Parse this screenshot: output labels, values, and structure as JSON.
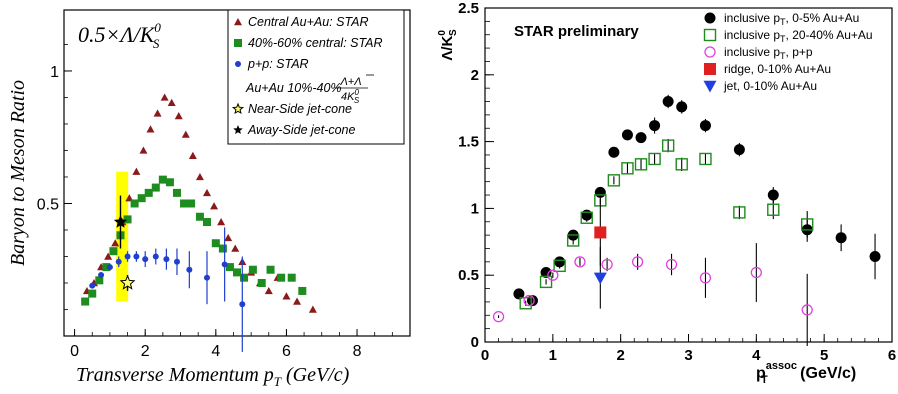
{
  "chart_data": [
    {
      "type": "scatter",
      "title": "0.5×Λ/K",
      "title_sup": "0",
      "title_sub": "S",
      "xlabel": "Transverse Momentum p",
      "xlabel_sub": "T",
      "xlabel_unit": " (GeV/c)",
      "ylabel": "Baryon to Meson Ratio",
      "xlim": [
        -0.3,
        9.5
      ],
      "ylim": [
        0,
        1.23
      ],
      "x_ticks": [
        0,
        2,
        4,
        6,
        8
      ],
      "x_tick_labels": [
        "0",
        "2",
        "4",
        "6",
        "8"
      ],
      "y_ticks": [
        0.5,
        1
      ],
      "y_tick_labels": [
        "0.5",
        "1"
      ],
      "band": {
        "x": 1.32,
        "y0": 0.13,
        "y1": 0.62,
        "color": "#ffff00"
      },
      "legend_position": "top-right",
      "series": [
        {
          "name": "Central Au+Au: STAR",
          "marker": "triangle",
          "color": "#8b1a1a",
          "points": [
            [
              0.35,
              0.17
            ],
            [
              0.55,
              0.2
            ],
            [
              0.75,
              0.26
            ],
            [
              0.95,
              0.3
            ],
            [
              1.15,
              0.35
            ],
            [
              1.35,
              0.43
            ],
            [
              1.55,
              0.52
            ],
            [
              1.75,
              0.62
            ],
            [
              1.95,
              0.7
            ],
            [
              2.15,
              0.78
            ],
            [
              2.35,
              0.84
            ],
            [
              2.55,
              0.9
            ],
            [
              2.75,
              0.88
            ],
            [
              2.95,
              0.83
            ],
            [
              3.15,
              0.76
            ],
            [
              3.35,
              0.68
            ],
            [
              3.55,
              0.6
            ],
            [
              3.75,
              0.54
            ],
            [
              3.95,
              0.49
            ],
            [
              4.15,
              0.43
            ],
            [
              4.35,
              0.37
            ],
            [
              4.55,
              0.33
            ],
            [
              4.75,
              0.28
            ],
            [
              5.0,
              0.24
            ],
            [
              5.25,
              0.2
            ],
            [
              5.5,
              0.17
            ],
            [
              5.75,
              0.22
            ],
            [
              6.0,
              0.15
            ],
            [
              6.3,
              0.13
            ],
            [
              6.75,
              0.1
            ]
          ]
        },
        {
          "name": "40%-60% central: STAR",
          "marker": "square",
          "color": "#1e8c1e",
          "points": [
            [
              0.3,
              0.13
            ],
            [
              0.5,
              0.16
            ],
            [
              0.7,
              0.21
            ],
            [
              0.9,
              0.26
            ],
            [
              1.1,
              0.32
            ],
            [
              1.3,
              0.38
            ],
            [
              1.5,
              0.44
            ],
            [
              1.7,
              0.5
            ],
            [
              1.9,
              0.52
            ],
            [
              2.1,
              0.54
            ],
            [
              2.3,
              0.56
            ],
            [
              2.5,
              0.59
            ],
            [
              2.7,
              0.58
            ],
            [
              2.9,
              0.54
            ],
            [
              3.1,
              0.5
            ],
            [
              3.3,
              0.5
            ],
            [
              3.55,
              0.45
            ],
            [
              3.75,
              0.43
            ],
            [
              4.0,
              0.35
            ],
            [
              4.2,
              0.33
            ],
            [
              4.4,
              0.26
            ],
            [
              4.6,
              0.24
            ],
            [
              4.8,
              0.22
            ],
            [
              5.05,
              0.25
            ],
            [
              5.3,
              0.2
            ],
            [
              5.55,
              0.25
            ],
            [
              5.85,
              0.22
            ],
            [
              6.15,
              0.22
            ],
            [
              6.45,
              0.17
            ]
          ]
        },
        {
          "name": "p+p: STAR",
          "marker": "circle",
          "color": "#1f3fd0",
          "points": [
            [
              0.5,
              0.19
            ],
            [
              0.75,
              0.23
            ],
            [
              1.0,
              0.26
            ],
            [
              1.25,
              0.28
            ],
            [
              1.5,
              0.3
            ],
            [
              1.75,
              0.3
            ],
            [
              2.0,
              0.29
            ],
            [
              2.3,
              0.3
            ],
            [
              2.6,
              0.29
            ],
            [
              2.9,
              0.28
            ],
            [
              3.25,
              0.25
            ],
            [
              3.75,
              0.22
            ],
            [
              4.25,
              0.27
            ],
            [
              4.75,
              0.12
            ]
          ],
          "errors": [
            0.01,
            0.01,
            0.01,
            0.02,
            0.02,
            0.02,
            0.03,
            0.03,
            0.04,
            0.05,
            0.07,
            0.1,
            0.14,
            0.18
          ]
        }
      ],
      "special_series": [
        {
          "name": "Au+Au 10%-40%",
          "ratio_label_top": "Λ+Λ",
          "ratio_label_bottom": "4K",
          "ratio_label_bottom_sup": "0",
          "ratio_label_bottom_sub": "S"
        },
        {
          "name": "Near-Side jet-cone",
          "marker": "open-star",
          "color": "#000000",
          "points": [
            [
              1.5,
              0.2
            ]
          ],
          "errors": [
            0.03
          ]
        },
        {
          "name": "Away-Side jet-cone",
          "marker": "star",
          "color": "#000000",
          "points": [
            [
              1.3,
              0.43
            ]
          ],
          "errors": [
            0.1
          ]
        }
      ]
    },
    {
      "type": "scatter",
      "title": "STAR preliminary",
      "ylabel": "Λ/K",
      "ylabel_sup": "0",
      "ylabel_sub": "S",
      "xlabel": "p",
      "xlabel_sub": "T",
      "xlabel_sup": "assoc",
      "xlabel_unit": " (GeV/c)",
      "xlim": [
        0,
        6
      ],
      "ylim": [
        0,
        2.5
      ],
      "x_ticks": [
        0,
        1,
        2,
        3,
        4,
        5,
        6
      ],
      "x_tick_labels": [
        "0",
        "1",
        "2",
        "3",
        "4",
        "5",
        "6"
      ],
      "y_ticks": [
        0,
        0.5,
        1,
        1.5,
        2,
        2.5
      ],
      "y_tick_labels": [
        "0",
        "0.5",
        "1",
        "1.5",
        "2",
        "2.5"
      ],
      "legend_position": "top-right",
      "series": [
        {
          "name": "inclusive p",
          "name_sub": "T",
          "name_suffix": ", 0-5% Au+Au",
          "marker": "filled-circle",
          "color": "#000000",
          "points": [
            [
              0.5,
              0.36
            ],
            [
              0.7,
              0.31
            ],
            [
              0.9,
              0.52
            ],
            [
              1.1,
              0.6
            ],
            [
              1.3,
              0.8
            ],
            [
              1.5,
              0.95
            ],
            [
              1.7,
              1.12
            ],
            [
              1.9,
              1.42
            ],
            [
              2.1,
              1.55
            ],
            [
              2.3,
              1.53
            ],
            [
              2.5,
              1.62
            ],
            [
              2.7,
              1.8
            ],
            [
              2.9,
              1.76
            ],
            [
              3.25,
              1.62
            ],
            [
              3.75,
              1.44
            ],
            [
              4.25,
              1.1
            ],
            [
              4.75,
              0.84
            ],
            [
              5.25,
              0.78
            ],
            [
              5.75,
              0.64
            ]
          ],
          "errors": [
            0.02,
            0.02,
            0.02,
            0.02,
            0.03,
            0.03,
            0.03,
            0.04,
            0.04,
            0.04,
            0.06,
            0.05,
            0.05,
            0.05,
            0.05,
            0.06,
            0.09,
            0.1,
            0.17
          ]
        },
        {
          "name": "inclusive p",
          "name_sub": "T",
          "name_suffix": ", 20-40% Au+Au",
          "marker": "open-square",
          "color": "#1e8c1e",
          "points": [
            [
              0.6,
              0.29
            ],
            [
              0.9,
              0.45
            ],
            [
              1.1,
              0.57
            ],
            [
              1.3,
              0.76
            ],
            [
              1.5,
              0.93
            ],
            [
              1.7,
              1.06
            ],
            [
              1.9,
              1.21
            ],
            [
              2.1,
              1.3
            ],
            [
              2.3,
              1.33
            ],
            [
              2.5,
              1.37
            ],
            [
              2.7,
              1.47
            ],
            [
              2.9,
              1.33
            ],
            [
              3.25,
              1.37
            ],
            [
              3.75,
              0.97
            ],
            [
              4.25,
              0.99
            ],
            [
              4.75,
              0.88
            ]
          ],
          "errors": [
            0.02,
            0.02,
            0.02,
            0.03,
            0.03,
            0.03,
            0.03,
            0.04,
            0.04,
            0.04,
            0.05,
            0.05,
            0.04,
            0.05,
            0.07,
            0.1
          ]
        },
        {
          "name": "inclusive p",
          "name_sub": "T",
          "name_suffix": ", p+p",
          "marker": "open-circle",
          "color": "#e040e0",
          "points": [
            [
              0.2,
              0.19
            ],
            [
              0.65,
              0.31
            ],
            [
              1.0,
              0.5
            ],
            [
              1.4,
              0.6
            ],
            [
              1.8,
              0.58
            ],
            [
              2.25,
              0.6
            ],
            [
              2.75,
              0.58
            ],
            [
              3.25,
              0.48
            ],
            [
              4.0,
              0.52
            ],
            [
              4.75,
              0.24
            ]
          ],
          "errors": [
            0.01,
            0.02,
            0.02,
            0.03,
            0.05,
            0.06,
            0.08,
            0.15,
            0.22,
            0.27
          ]
        },
        {
          "name": "ridge, 0-10% Au+Au",
          "marker": "filled-square",
          "color": "#e02020",
          "points": [
            [
              1.7,
              0.82
            ]
          ],
          "errors": [
            0.25
          ]
        },
        {
          "name": "jet, 0-10% Au+Au",
          "marker": "filled-triangle-down",
          "color": "#1f3fe0",
          "points": [
            [
              1.7,
              0.48
            ]
          ],
          "errors": [
            0.23
          ]
        }
      ]
    }
  ]
}
